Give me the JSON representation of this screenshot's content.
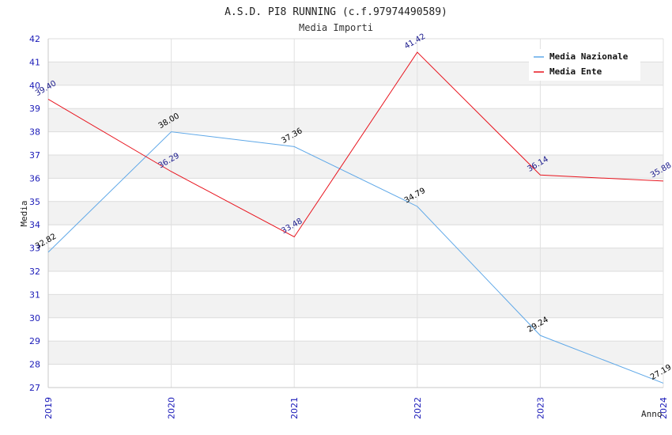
{
  "chart_data": {
    "type": "line",
    "title": "A.S.D. PI8 RUNNING (c.f.97974490589)",
    "subtitle": "Media Importi",
    "xlabel": "Anno",
    "ylabel": "Media",
    "x": [
      "2019",
      "2020",
      "2021",
      "2022",
      "2023",
      "2024"
    ],
    "ylim": [
      27,
      42
    ],
    "yticks": [
      27,
      28,
      29,
      30,
      31,
      32,
      33,
      34,
      35,
      36,
      37,
      38,
      39,
      40,
      41,
      42
    ],
    "legend_position": "top-right",
    "series": [
      {
        "name": "Media Nazionale",
        "color": "#5fa8e8",
        "label_color": "#000000",
        "values": [
          32.82,
          38.0,
          37.36,
          34.79,
          29.24,
          27.19
        ],
        "labels": [
          "32.82",
          "38.00",
          "37.36",
          "34.79",
          "29.24",
          "27.19"
        ]
      },
      {
        "name": "Media Ente",
        "color": "#e8141e",
        "label_color": "#1a1a8c",
        "values": [
          39.4,
          36.29,
          33.48,
          41.42,
          36.14,
          35.88
        ],
        "labels": [
          "39.40",
          "36.29",
          "33.48",
          "41.42",
          "36.14",
          "35.88"
        ]
      }
    ]
  }
}
